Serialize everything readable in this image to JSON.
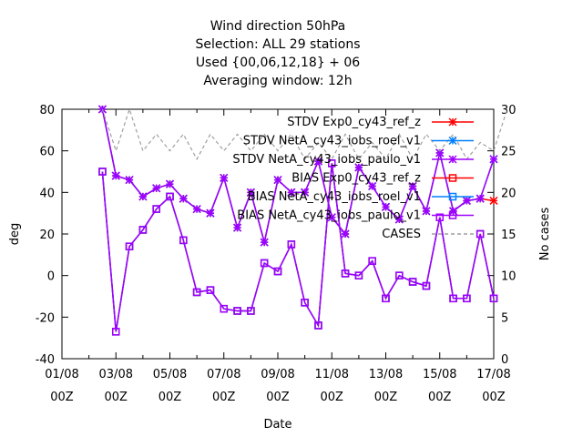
{
  "chart_data": {
    "type": "line",
    "title_lines": [
      "Wind direction 50hPa",
      "Selection: ALL      29 stations",
      "Used {00,06,12,18} + 06",
      "Averaging window: 12h"
    ],
    "xlabel": "Date",
    "ylabel": "deg",
    "y2label": "No cases",
    "x_tick_labels": [
      [
        "01/08",
        "00Z"
      ],
      [
        "03/08",
        "00Z"
      ],
      [
        "05/08",
        "00Z"
      ],
      [
        "07/08",
        "00Z"
      ],
      [
        "09/08",
        "00Z"
      ],
      [
        "11/08",
        "00Z"
      ],
      [
        "13/08",
        "00Z"
      ],
      [
        "15/08",
        "00Z"
      ],
      [
        "17/08",
        "00Z"
      ]
    ],
    "x_range_days": [
      0,
      16
    ],
    "ylim": [
      -40,
      80
    ],
    "y_ticks": [
      "80",
      "60",
      "40",
      "20",
      "0",
      "-20",
      "-40"
    ],
    "y2lim": [
      0,
      30
    ],
    "y2_ticks": [
      "30",
      "25",
      "20",
      "15",
      "10",
      "5",
      "0"
    ],
    "legend_position": "top-right",
    "x_days": [
      1.5,
      2,
      2.5,
      3,
      3.5,
      4,
      4.5,
      5,
      5.5,
      6,
      6.5,
      7,
      7.5,
      8,
      8.5,
      9,
      9.5,
      10,
      10.5,
      11,
      11.5,
      12,
      12.5,
      13,
      13.5,
      14,
      14.5,
      15,
      15.5,
      16,
      16.5
    ],
    "series": [
      {
        "name": "STDV Exp0_cy43_ref_z",
        "color": "#ff0000",
        "marker": "x-star",
        "axis": "y1",
        "values": [
          80,
          48,
          46,
          38,
          42,
          44,
          37,
          32,
          30,
          47,
          23,
          40,
          16,
          46,
          40,
          40,
          55,
          28,
          20,
          52,
          43,
          33,
          27,
          43,
          31,
          59,
          31,
          36,
          37,
          36,
          null
        ]
      },
      {
        "name": "STDV NetA_cy43_iobs_roel_v1",
        "color": "#0080ff",
        "marker": "x-star",
        "axis": "y1",
        "values": [
          80,
          48,
          46,
          38,
          42,
          44,
          37,
          32,
          30,
          47,
          23,
          40,
          16,
          46,
          40,
          40,
          55,
          28,
          20,
          52,
          43,
          33,
          27,
          43,
          31,
          59,
          31,
          36,
          37,
          56,
          null
        ]
      },
      {
        "name": "STDV NetA_cy43_iobs_paulo_v1",
        "color": "#a000ff",
        "marker": "x-star",
        "axis": "y1",
        "values": [
          80,
          48,
          46,
          38,
          42,
          44,
          37,
          32,
          30,
          47,
          23,
          40,
          16,
          46,
          40,
          40,
          55,
          28,
          20,
          52,
          43,
          33,
          27,
          43,
          31,
          59,
          31,
          36,
          37,
          56,
          null
        ]
      },
      {
        "name": "BIAS Exp0_cy43_ref_z",
        "color": "#ff0000",
        "marker": "square",
        "axis": "y1",
        "values": [
          50,
          -27,
          14,
          22,
          32,
          38,
          17,
          -8,
          -7,
          -16,
          -17,
          -17,
          6,
          2,
          15,
          -13,
          -24,
          54,
          1,
          0,
          7,
          -11,
          0,
          -3,
          -5,
          28,
          -11,
          -11,
          20,
          -11,
          null
        ]
      },
      {
        "name": "BIAS NetA_cy43_iobs_roel_v1",
        "color": "#0080ff",
        "marker": "square",
        "axis": "y1",
        "values": [
          50,
          -27,
          14,
          22,
          32,
          38,
          17,
          -8,
          -7,
          -16,
          -17,
          -17,
          6,
          2,
          15,
          -13,
          -24,
          54,
          1,
          0,
          7,
          -11,
          0,
          -3,
          -5,
          28,
          -11,
          -11,
          20,
          -11,
          null
        ]
      },
      {
        "name": "BIAS NetA_cy43_iobs_paulo_v1",
        "color": "#a000ff",
        "marker": "square",
        "axis": "y1",
        "values": [
          50,
          -27,
          14,
          22,
          32,
          38,
          17,
          -8,
          -7,
          -16,
          -17,
          -17,
          6,
          2,
          15,
          -13,
          -24,
          54,
          1,
          0,
          7,
          -11,
          0,
          -3,
          -5,
          28,
          -11,
          -11,
          20,
          -11,
          null
        ]
      },
      {
        "name": "CASES",
        "color": "#a0a0a0",
        "marker": "none",
        "dashed": true,
        "axis": "y2",
        "values": [
          30,
          25,
          30,
          25,
          27,
          25,
          27,
          24,
          27,
          25,
          27,
          25,
          27,
          25,
          27,
          24,
          26,
          24,
          27,
          24,
          26,
          24,
          27,
          24,
          27,
          25,
          27,
          24,
          26,
          25,
          30
        ]
      }
    ]
  }
}
